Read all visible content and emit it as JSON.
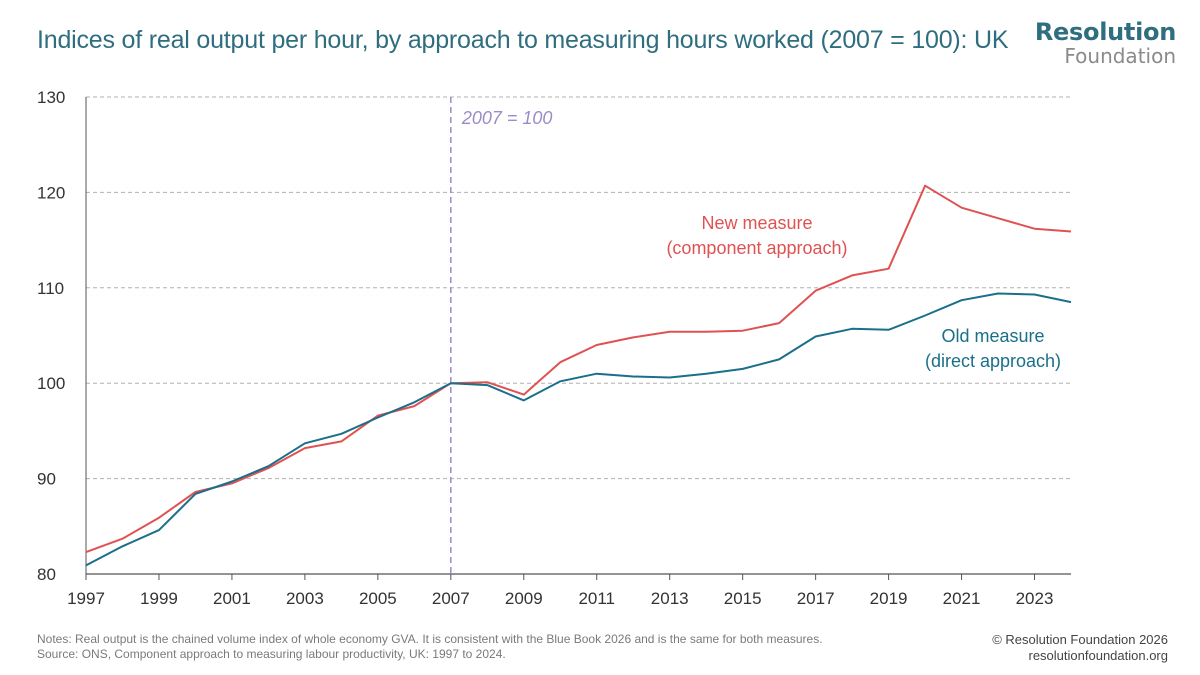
{
  "title": "Indices of real output per hour, by approach to measuring hours worked (2007 = 100): UK",
  "logo": {
    "line1": "Resolution",
    "line2": "Foundation"
  },
  "notes": {
    "line1": "Notes: Real output is the chained volume index of whole economy GVA. It is consistent with the Blue Book 2026 and is the same for both measures.",
    "line2": "Source: ONS, Component approach to measuring labour productivity, UK: 1997 to 2024."
  },
  "credits": {
    "line1": "© Resolution Foundation 2026",
    "line2": "resolutionfoundation.org"
  },
  "colors": {
    "new": "#e05252",
    "old": "#1a6f8a",
    "reference": "#9a8cc8",
    "title": "#2e6e7f"
  },
  "chart_data": {
    "type": "line",
    "x": [
      1997,
      1998,
      1999,
      2000,
      2001,
      2002,
      2003,
      2004,
      2005,
      2006,
      2007,
      2008,
      2009,
      2010,
      2011,
      2012,
      2013,
      2014,
      2015,
      2016,
      2017,
      2018,
      2019,
      2020,
      2021,
      2022,
      2023,
      2024
    ],
    "series": [
      {
        "name": "New measure (component approach)",
        "label_lines": [
          "New measure",
          "(component approach)"
        ],
        "color": "#e05252",
        "values": [
          82.3,
          83.7,
          85.9,
          88.6,
          89.5,
          91.1,
          93.2,
          93.9,
          96.6,
          97.6,
          100.0,
          100.1,
          98.8,
          102.2,
          104.0,
          104.8,
          105.4,
          105.4,
          105.5,
          106.3,
          109.7,
          111.3,
          112.0,
          120.7,
          118.4,
          117.3,
          116.2,
          115.9
        ]
      },
      {
        "name": "Old measure (direct approach)",
        "label_lines": [
          "Old measure",
          "(direct approach)"
        ],
        "color": "#1a6f8a",
        "values": [
          80.9,
          82.9,
          84.6,
          88.4,
          89.7,
          91.3,
          93.7,
          94.7,
          96.4,
          98.0,
          100.0,
          99.8,
          98.2,
          100.2,
          101.0,
          100.7,
          100.6,
          101.0,
          101.5,
          102.5,
          104.9,
          105.7,
          105.6,
          107.1,
          108.7,
          109.4,
          109.3,
          108.5
        ]
      }
    ],
    "reference_line": {
      "x": 2007,
      "label": "2007 = 100"
    },
    "xlim": [
      1997,
      2024
    ],
    "ylim": [
      80,
      130
    ],
    "y_ticks": [
      80,
      90,
      100,
      110,
      120,
      130
    ],
    "x_ticks": [
      1997,
      1999,
      2001,
      2003,
      2005,
      2007,
      2009,
      2011,
      2013,
      2015,
      2017,
      2019,
      2021,
      2023
    ],
    "grid": true
  }
}
